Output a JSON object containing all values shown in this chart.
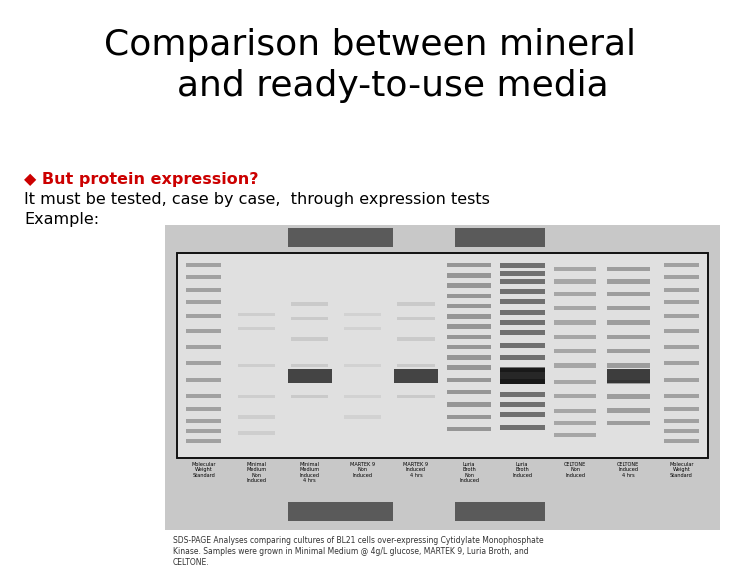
{
  "title_line1": "Comparison between mineral",
  "title_line2": "    and ready-to-use media",
  "title_fontsize": 26,
  "title_font": "Comic Sans MS",
  "bullet_color": "#cc0000",
  "bullet_text": "◆ But protein expression?",
  "line2_text": "It must be tested, case by case,  through expression tests",
  "line3_text": "Example:",
  "body_fontsize": 11.5,
  "body_font": "Courier New",
  "bg_color": "#ffffff",
  "panel_bg": "#c8c8c8",
  "gel_bg": "#dcdcdc",
  "label_bg": "#5a5a5a",
  "label_text_color": "#ffffff",
  "label_martek": "Martek 9",
  "label_celtone": "Celtone",
  "caption_text": "SDS-PAGE Analyses comparing cultures of BL21 cells over-expressing Cytidylate Monophosphate\nKinase. Samples were grown in Minimal Medium @ 4g/L glucose, MARTEK 9, Luria Broth, and\nCELTONE.",
  "caption_fontsize": 5.5
}
